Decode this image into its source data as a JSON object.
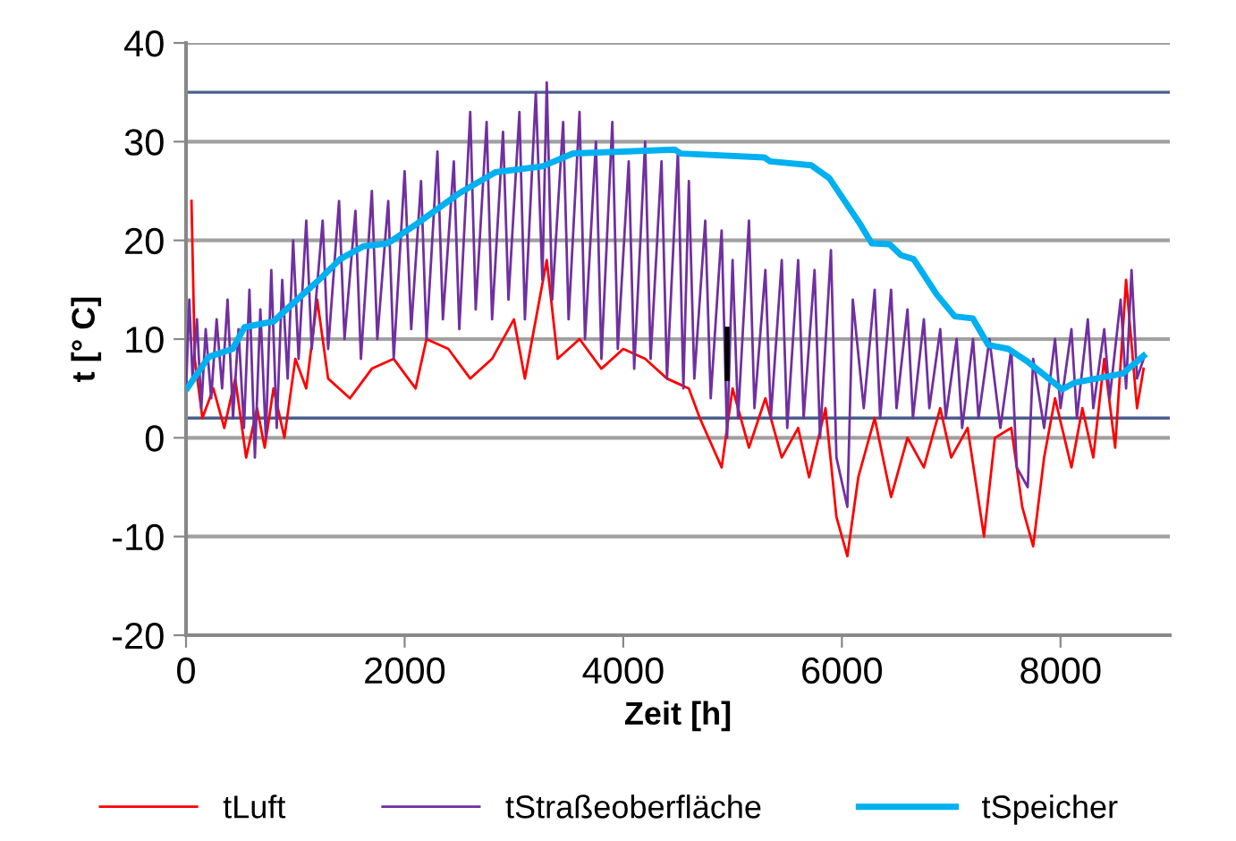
{
  "chart_data": {
    "type": "line",
    "xlabel": "Zeit [h]",
    "ylabel": "t [° C]",
    "xlim": [
      0,
      9000
    ],
    "xticks": [
      0,
      2000,
      4000,
      6000,
      8000
    ],
    "ylim": [
      -20,
      40
    ],
    "yticks": [
      -20,
      -10,
      0,
      10,
      20,
      30,
      40
    ],
    "grid": "y",
    "legend": "bottom",
    "marker": "none",
    "line_style": "solid",
    "ref_lines": [
      {
        "axis": "y",
        "value": 35,
        "color": "#4a5f8c"
      },
      {
        "axis": "y",
        "value": 2,
        "color": "#4a5f8c"
      }
    ],
    "series": [
      {
        "name": "tLuft",
        "color": "#ff0000",
        "x": [
          50,
          80,
          150,
          250,
          350,
          450,
          550,
          650,
          720,
          800,
          900,
          1000,
          1100,
          1200,
          1300,
          1500,
          1700,
          1900,
          2100,
          2200,
          2400,
          2600,
          2800,
          3000,
          3100,
          3300,
          3400,
          3600,
          3800,
          4000,
          4200,
          4400,
          4600,
          4700,
          4900,
          5000,
          5150,
          5300,
          5450,
          5600,
          5700,
          5850,
          5950,
          6050,
          6150,
          6300,
          6450,
          6600,
          6750,
          6900,
          7000,
          7150,
          7300,
          7400,
          7550,
          7650,
          7750,
          7850,
          7950,
          8100,
          8200,
          8300,
          8400,
          8500,
          8600,
          8700,
          8760
        ],
        "values": [
          24,
          8,
          2,
          5,
          1,
          6,
          -2,
          3,
          -1,
          5,
          0,
          8,
          5,
          14,
          6,
          4,
          7,
          8,
          5,
          10,
          9,
          6,
          8,
          12,
          6,
          18,
          8,
          10,
          7,
          9,
          8,
          6,
          5,
          2,
          -3,
          5,
          -1,
          4,
          -2,
          1,
          -4,
          3,
          -8,
          -12,
          -4,
          2,
          -6,
          0,
          -3,
          3,
          -2,
          1,
          -10,
          0,
          1,
          -7,
          -11,
          -2,
          4,
          -3,
          3,
          -2,
          8,
          -1,
          16,
          3,
          7
        ]
      },
      {
        "name": "tStraßeoberfläche",
        "color": "#7030a0",
        "x": [
          0,
          30,
          60,
          100,
          140,
          180,
          230,
          280,
          330,
          380,
          430,
          480,
          530,
          580,
          630,
          680,
          730,
          780,
          830,
          880,
          930,
          980,
          1030,
          1100,
          1150,
          1250,
          1300,
          1400,
          1450,
          1550,
          1600,
          1700,
          1750,
          1850,
          1900,
          2000,
          2060,
          2150,
          2200,
          2300,
          2350,
          2450,
          2500,
          2600,
          2650,
          2750,
          2800,
          2900,
          2950,
          3050,
          3100,
          3200,
          3260,
          3300,
          3350,
          3450,
          3500,
          3600,
          3650,
          3750,
          3800,
          3900,
          3950,
          4050,
          4100,
          4200,
          4250,
          4350,
          4400,
          4500,
          4550,
          4600,
          4650,
          4750,
          4800,
          4900,
          4950,
          5000,
          5050,
          5150,
          5200,
          5300,
          5350,
          5450,
          5500,
          5600,
          5650,
          5750,
          5800,
          5900,
          5950,
          6050,
          6100,
          6200,
          6300,
          6350,
          6450,
          6500,
          6600,
          6650,
          6750,
          6800,
          6900,
          6950,
          7050,
          7100,
          7200,
          7250,
          7350,
          7450,
          7550,
          7600,
          7700,
          7750,
          7850,
          7950,
          8000,
          8100,
          8150,
          8250,
          8300,
          8400,
          8450,
          8550,
          8600,
          8650,
          8700,
          8760
        ],
        "values": [
          5,
          14,
          6,
          12,
          3,
          11,
          4,
          12,
          5,
          14,
          2,
          11,
          1,
          15,
          -2,
          13,
          0,
          17,
          1,
          16,
          6,
          20,
          8,
          22,
          9,
          22,
          9,
          24,
          10,
          23,
          8,
          25,
          10,
          24,
          8,
          27,
          11,
          26,
          10,
          29,
          12,
          28,
          11,
          33,
          13,
          32,
          12,
          31,
          14,
          33,
          12,
          35,
          16,
          36,
          14,
          32,
          12,
          33,
          10,
          30,
          8,
          32,
          9,
          28,
          7,
          30,
          8,
          28,
          6,
          29,
          5,
          26,
          6,
          22,
          4,
          21,
          0,
          18,
          2,
          22,
          3,
          17,
          2,
          18,
          1,
          18,
          2,
          17,
          0,
          19,
          -2,
          -7,
          14,
          3,
          15,
          2,
          15,
          3,
          13,
          2,
          12,
          3,
          11,
          2,
          10,
          1,
          10,
          2,
          10,
          1,
          9,
          -3,
          -5,
          8,
          1,
          10,
          3,
          11,
          2,
          12,
          3,
          11,
          4,
          14,
          5,
          17,
          6,
          8
        ]
      },
      {
        "name": "tSpeicher",
        "color": "#00b0f0",
        "x": [
          16,
          208,
          426,
          535,
          803,
          918,
          1246,
          1410,
          1623,
          1847,
          2115,
          2503,
          2831,
          3262,
          3541,
          4470,
          4525,
          5290,
          5344,
          5721,
          5885,
          6164,
          6273,
          6437,
          6541,
          6656,
          6869,
          7033,
          7197,
          7339,
          7525,
          7689,
          8016,
          8131,
          8568,
          8760
        ],
        "values": [
          5.1,
          8.2,
          9,
          11.2,
          11.8,
          13,
          16.3,
          18.1,
          19.4,
          19.7,
          21.7,
          24.8,
          26.9,
          27.5,
          28.8,
          29.2,
          28.8,
          28.4,
          28,
          27.6,
          26.3,
          21.7,
          19.7,
          19.6,
          18.5,
          18.1,
          14.5,
          12.3,
          12.1,
          9.4,
          9,
          7.8,
          4.9,
          5.6,
          6.5,
          8.3
        ]
      },
      {
        "color": "#000000",
        "x": [
          4950,
          4950
        ],
        "values": [
          6,
          11
        ]
      }
    ]
  }
}
